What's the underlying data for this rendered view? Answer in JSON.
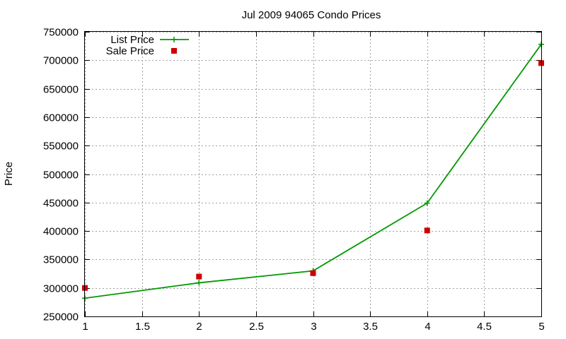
{
  "chart_data": {
    "type": "line",
    "title": "Jul 2009 94065 Condo Prices",
    "xlabel": "",
    "ylabel": "Price",
    "xlim": [
      1,
      5
    ],
    "ylim": [
      250000,
      750000
    ],
    "x_ticks": [
      "1",
      "1.5",
      "2",
      "2.5",
      "3",
      "3.5",
      "4",
      "4.5",
      "5"
    ],
    "y_ticks": [
      "250000",
      "300000",
      "350000",
      "400000",
      "450000",
      "500000",
      "550000",
      "600000",
      "650000",
      "700000",
      "750000"
    ],
    "grid": true,
    "legend_position": "top-left",
    "series": [
      {
        "name": "List Price",
        "style": "linespoints",
        "marker": "plus",
        "color": "#009900",
        "x": [
          1,
          2,
          3,
          4,
          5
        ],
        "values": [
          282000,
          309000,
          330000,
          449000,
          728000
        ]
      },
      {
        "name": "Sale Price",
        "style": "points",
        "marker": "square",
        "color": "#cc0000",
        "x": [
          1,
          2,
          3,
          4,
          5
        ],
        "values": [
          300000,
          320000,
          326000,
          401000,
          695000
        ]
      }
    ]
  }
}
